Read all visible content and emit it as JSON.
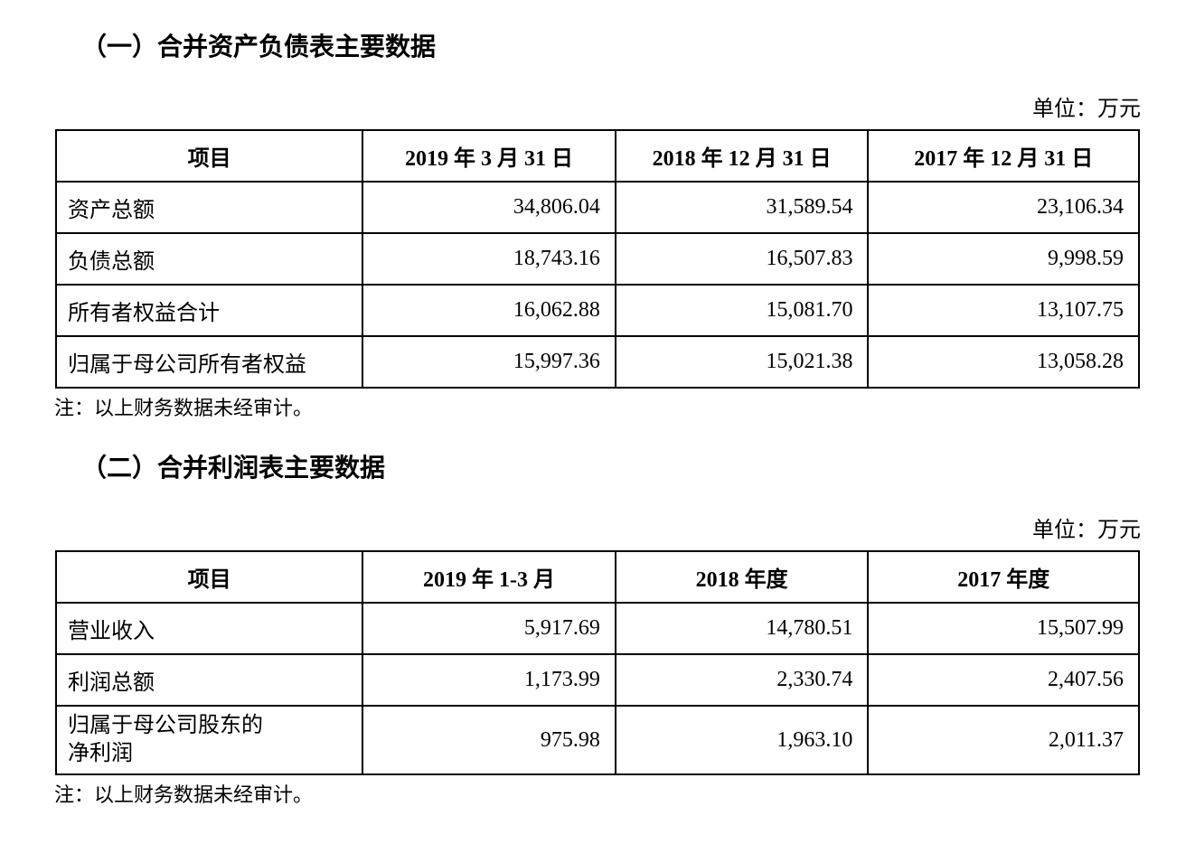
{
  "section1": {
    "heading": "（一）合并资产负债表主要数据",
    "unit": "单位：万元",
    "columns": [
      "项目",
      "2019 年 3 月 31 日",
      "2018 年 12 月 31 日",
      "2017 年 12 月 31 日"
    ],
    "rows": [
      {
        "label": "资产总额",
        "v1": "34,806.04",
        "v2": "31,589.54",
        "v3": "23,106.34"
      },
      {
        "label": "负债总额",
        "v1": "18,743.16",
        "v2": "16,507.83",
        "v3": "9,998.59"
      },
      {
        "label": "所有者权益合计",
        "v1": "16,062.88",
        "v2": "15,081.70",
        "v3": "13,107.75"
      },
      {
        "label": "归属于母公司所有者权益",
        "v1": "15,997.36",
        "v2": "15,021.38",
        "v3": "13,058.28"
      }
    ],
    "footnote": "注：以上财务数据未经审计。"
  },
  "section2": {
    "heading": "（二）合并利润表主要数据",
    "unit": "单位：万元",
    "columns": [
      "项目",
      "2019 年 1-3 月",
      "2018 年度",
      "2017 年度"
    ],
    "rows": [
      {
        "label": "营业收入",
        "v1": "5,917.69",
        "v2": "14,780.51",
        "v3": "15,507.99"
      },
      {
        "label": "利润总额",
        "v1": "1,173.99",
        "v2": "2,330.74",
        "v3": "2,407.56"
      },
      {
        "label": "归属于母公司股东的净利润",
        "v1": "975.98",
        "v2": "1,963.10",
        "v3": "2,011.37",
        "wrap": true
      }
    ],
    "footnote": "注：以上财务数据未经审计。"
  }
}
